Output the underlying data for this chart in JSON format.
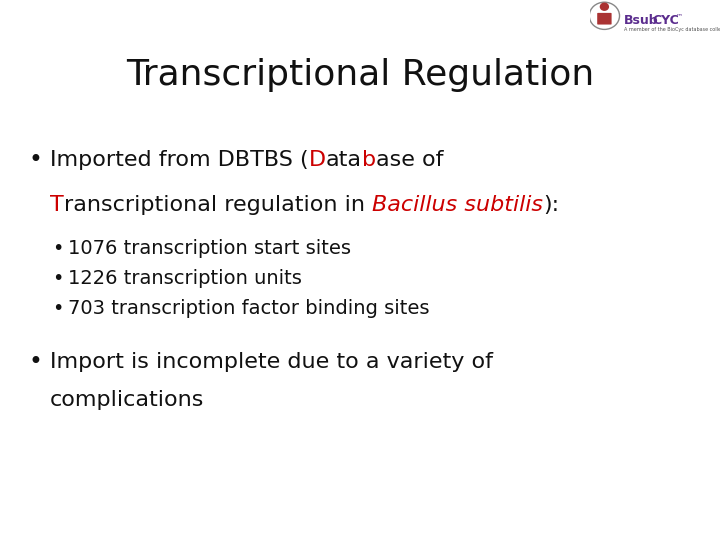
{
  "title": "Transcriptional Regulation",
  "title_fontsize": 26,
  "title_color": "#111111",
  "background_color": "#ffffff",
  "text_color": "#111111",
  "red_color": "#cc0000",
  "body_fontsize": 16,
  "sub_fontsize": 14,
  "logo_bsub": "Bsub",
  "logo_cyc": "CYC",
  "logo_color": "#5b2d8e",
  "sub_bullets": [
    "1076 transcription start sites",
    "1226 transcription units",
    "703 transcription factor binding sites"
  ]
}
